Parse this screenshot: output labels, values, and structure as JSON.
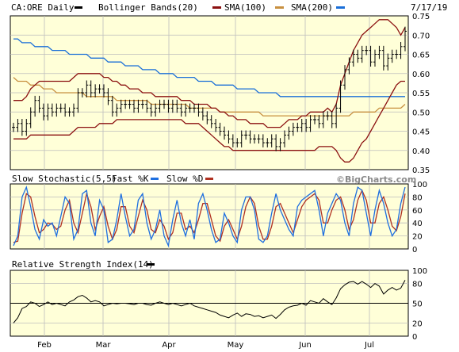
{
  "header": {
    "symbol_label": "CA:ORE Daily",
    "bb_label": "Bollinger Bands(20)",
    "sma100_label": "SMA(100)",
    "sma200_label": "SMA(200)",
    "date_label": "7/17/19"
  },
  "watermark": "©BigCharts.com",
  "colors": {
    "bg_plot": "#ffffd8",
    "price": "#000000",
    "bollinger": "#8b1010",
    "sma100": "#c89040",
    "sma200": "#1a6fd8",
    "stoch_fast": "#1e6fe0",
    "stoch_slow": "#b03020",
    "rsi": "#000000",
    "grid": "#bdbdbd"
  },
  "chart_data": [
    {
      "type": "line",
      "panel": "price",
      "title": "CA:ORE Daily",
      "ylim": [
        0.35,
        0.75
      ],
      "y_ticks": [
        "0.75",
        "0.70",
        "0.65",
        "0.60",
        "0.55",
        "0.50",
        "0.45",
        "0.40",
        "0.35"
      ],
      "x_ticks": [
        "Feb",
        "Mar",
        "Apr",
        "May",
        "Jun",
        "Jul"
      ],
      "grid": true,
      "series": [
        {
          "name": "CA:ORE Daily",
          "style": "ohlc",
          "values": [
            0.46,
            0.47,
            0.45,
            0.47,
            0.5,
            0.53,
            0.51,
            0.49,
            0.51,
            0.5,
            0.51,
            0.51,
            0.5,
            0.5,
            0.51,
            0.55,
            0.55,
            0.57,
            0.55,
            0.56,
            0.56,
            0.55,
            0.53,
            0.5,
            0.51,
            0.52,
            0.52,
            0.52,
            0.51,
            0.52,
            0.52,
            0.51,
            0.5,
            0.51,
            0.52,
            0.52,
            0.51,
            0.52,
            0.51,
            0.5,
            0.51,
            0.51,
            0.51,
            0.5,
            0.49,
            0.48,
            0.47,
            0.46,
            0.45,
            0.44,
            0.43,
            0.42,
            0.42,
            0.44,
            0.44,
            0.43,
            0.43,
            0.43,
            0.42,
            0.42,
            0.43,
            0.41,
            0.42,
            0.44,
            0.45,
            0.46,
            0.46,
            0.47,
            0.46,
            0.48,
            0.48,
            0.47,
            0.49,
            0.49,
            0.47,
            0.51,
            0.57,
            0.61,
            0.63,
            0.65,
            0.64,
            0.66,
            0.66,
            0.63,
            0.65,
            0.66,
            0.62,
            0.64,
            0.65,
            0.65,
            0.67,
            0.71
          ]
        },
        {
          "name": "Bollinger Bands(20) Upper",
          "values": [
            0.53,
            0.53,
            0.53,
            0.54,
            0.56,
            0.57,
            0.58,
            0.58,
            0.58,
            0.58,
            0.58,
            0.58,
            0.58,
            0.58,
            0.59,
            0.6,
            0.6,
            0.6,
            0.6,
            0.6,
            0.6,
            0.59,
            0.59,
            0.58,
            0.58,
            0.57,
            0.57,
            0.56,
            0.56,
            0.56,
            0.55,
            0.55,
            0.55,
            0.54,
            0.54,
            0.54,
            0.54,
            0.54,
            0.54,
            0.53,
            0.53,
            0.53,
            0.52,
            0.52,
            0.52,
            0.52,
            0.51,
            0.51,
            0.5,
            0.5,
            0.49,
            0.49,
            0.48,
            0.48,
            0.48,
            0.47,
            0.47,
            0.47,
            0.47,
            0.46,
            0.46,
            0.46,
            0.46,
            0.47,
            0.48,
            0.48,
            0.48,
            0.49,
            0.49,
            0.5,
            0.5,
            0.5,
            0.5,
            0.51,
            0.5,
            0.52,
            0.57,
            0.6,
            0.63,
            0.66,
            0.68,
            0.7,
            0.71,
            0.72,
            0.73,
            0.74,
            0.74,
            0.74,
            0.73,
            0.72,
            0.7,
            0.72
          ]
        },
        {
          "name": "Bollinger Bands(20) Lower",
          "values": [
            0.43,
            0.43,
            0.43,
            0.43,
            0.44,
            0.44,
            0.44,
            0.44,
            0.44,
            0.44,
            0.44,
            0.44,
            0.44,
            0.44,
            0.45,
            0.46,
            0.46,
            0.46,
            0.46,
            0.46,
            0.47,
            0.47,
            0.47,
            0.47,
            0.48,
            0.48,
            0.48,
            0.48,
            0.48,
            0.48,
            0.48,
            0.48,
            0.48,
            0.48,
            0.48,
            0.48,
            0.48,
            0.48,
            0.48,
            0.48,
            0.47,
            0.47,
            0.47,
            0.47,
            0.46,
            0.45,
            0.44,
            0.43,
            0.42,
            0.41,
            0.41,
            0.4,
            0.4,
            0.4,
            0.4,
            0.4,
            0.4,
            0.4,
            0.4,
            0.4,
            0.4,
            0.4,
            0.4,
            0.4,
            0.4,
            0.4,
            0.4,
            0.4,
            0.4,
            0.4,
            0.4,
            0.41,
            0.41,
            0.41,
            0.41,
            0.4,
            0.38,
            0.37,
            0.37,
            0.38,
            0.4,
            0.42,
            0.43,
            0.45,
            0.47,
            0.49,
            0.51,
            0.53,
            0.55,
            0.57,
            0.58,
            0.58
          ]
        },
        {
          "name": "SMA(100)",
          "values": [
            0.59,
            0.58,
            0.58,
            0.58,
            0.57,
            0.57,
            0.57,
            0.56,
            0.56,
            0.56,
            0.55,
            0.55,
            0.55,
            0.55,
            0.55,
            0.55,
            0.55,
            0.54,
            0.54,
            0.54,
            0.54,
            0.54,
            0.54,
            0.54,
            0.53,
            0.53,
            0.53,
            0.53,
            0.53,
            0.53,
            0.53,
            0.53,
            0.52,
            0.52,
            0.52,
            0.52,
            0.52,
            0.52,
            0.52,
            0.52,
            0.52,
            0.51,
            0.51,
            0.51,
            0.51,
            0.51,
            0.51,
            0.51,
            0.5,
            0.5,
            0.5,
            0.5,
            0.5,
            0.5,
            0.5,
            0.5,
            0.5,
            0.5,
            0.49,
            0.49,
            0.49,
            0.49,
            0.49,
            0.49,
            0.49,
            0.49,
            0.49,
            0.49,
            0.49,
            0.49,
            0.49,
            0.49,
            0.49,
            0.49,
            0.49,
            0.49,
            0.49,
            0.49,
            0.49,
            0.5,
            0.5,
            0.5,
            0.5,
            0.5,
            0.5,
            0.51,
            0.51,
            0.51,
            0.51,
            0.51,
            0.51,
            0.52
          ]
        },
        {
          "name": "SMA(200)",
          "values": [
            0.69,
            0.69,
            0.68,
            0.68,
            0.68,
            0.67,
            0.67,
            0.67,
            0.67,
            0.66,
            0.66,
            0.66,
            0.66,
            0.65,
            0.65,
            0.65,
            0.65,
            0.65,
            0.64,
            0.64,
            0.64,
            0.64,
            0.63,
            0.63,
            0.63,
            0.63,
            0.62,
            0.62,
            0.62,
            0.62,
            0.61,
            0.61,
            0.61,
            0.61,
            0.6,
            0.6,
            0.6,
            0.6,
            0.59,
            0.59,
            0.59,
            0.59,
            0.59,
            0.58,
            0.58,
            0.58,
            0.58,
            0.57,
            0.57,
            0.57,
            0.57,
            0.57,
            0.56,
            0.56,
            0.56,
            0.56,
            0.56,
            0.55,
            0.55,
            0.55,
            0.55,
            0.55,
            0.54,
            0.54,
            0.54,
            0.54,
            0.54,
            0.54,
            0.54,
            0.54,
            0.54,
            0.54,
            0.54,
            0.54,
            0.54,
            0.54,
            0.54,
            0.54,
            0.54,
            0.54,
            0.54,
            0.54,
            0.54,
            0.54,
            0.54,
            0.54,
            0.54,
            0.54,
            0.54,
            0.54,
            0.54,
            0.54
          ]
        }
      ]
    },
    {
      "type": "line",
      "panel": "stochastic",
      "title": "Slow Stochastic(5,5)",
      "ylim": [
        0,
        100
      ],
      "y_ticks": [
        "100",
        "80",
        "60",
        "40",
        "20",
        "0"
      ],
      "grid": true,
      "series": [
        {
          "name": "Fast %K",
          "values": [
            5,
            20,
            80,
            95,
            65,
            30,
            15,
            45,
            35,
            40,
            20,
            50,
            80,
            70,
            15,
            30,
            85,
            90,
            40,
            20,
            75,
            60,
            10,
            15,
            45,
            85,
            50,
            20,
            30,
            75,
            85,
            40,
            15,
            30,
            60,
            20,
            5,
            45,
            75,
            40,
            20,
            45,
            15,
            70,
            85,
            60,
            30,
            10,
            15,
            55,
            40,
            20,
            10,
            60,
            80,
            80,
            60,
            15,
            10,
            20,
            55,
            85,
            60,
            45,
            30,
            20,
            65,
            75,
            80,
            85,
            90,
            60,
            20,
            55,
            70,
            85,
            75,
            40,
            20,
            70,
            95,
            90,
            55,
            20,
            60,
            90,
            70,
            40,
            20,
            30,
            70,
            95
          ]
        },
        {
          "name": "Slow %D",
          "values": [
            10,
            12,
            55,
            85,
            80,
            50,
            25,
            30,
            40,
            38,
            30,
            35,
            60,
            75,
            40,
            25,
            55,
            85,
            65,
            30,
            50,
            65,
            35,
            15,
            30,
            65,
            65,
            35,
            25,
            50,
            75,
            60,
            30,
            25,
            45,
            35,
            15,
            25,
            55,
            55,
            30,
            35,
            25,
            45,
            70,
            70,
            45,
            20,
            12,
            35,
            45,
            30,
            15,
            35,
            65,
            80,
            70,
            35,
            15,
            15,
            35,
            65,
            70,
            55,
            40,
            25,
            45,
            65,
            75,
            80,
            85,
            75,
            40,
            40,
            60,
            75,
            80,
            60,
            30,
            45,
            75,
            90,
            75,
            40,
            40,
            70,
            80,
            60,
            35,
            28,
            50,
            85
          ]
        }
      ]
    },
    {
      "type": "line",
      "panel": "rsi",
      "title": "Relative Strength Index(14)",
      "ylim": [
        0,
        100
      ],
      "y_ticks": [
        "100",
        "80",
        "50",
        "20",
        "0"
      ],
      "grid": true,
      "series": [
        {
          "name": "Relative Strength Index(14)",
          "values": [
            20,
            28,
            42,
            45,
            52,
            50,
            45,
            48,
            52,
            48,
            50,
            48,
            46,
            52,
            55,
            60,
            62,
            58,
            52,
            54,
            52,
            46,
            48,
            50,
            49,
            50,
            50,
            49,
            48,
            50,
            50,
            48,
            47,
            50,
            52,
            50,
            48,
            50,
            48,
            46,
            48,
            50,
            46,
            44,
            42,
            40,
            38,
            36,
            32,
            30,
            28,
            32,
            35,
            30,
            34,
            33,
            30,
            31,
            28,
            30,
            32,
            27,
            33,
            40,
            44,
            46,
            47,
            50,
            47,
            54,
            52,
            50,
            57,
            52,
            48,
            58,
            72,
            78,
            82,
            83,
            79,
            83,
            79,
            74,
            80,
            76,
            64,
            70,
            74,
            70,
            73,
            85
          ]
        }
      ]
    }
  ]
}
